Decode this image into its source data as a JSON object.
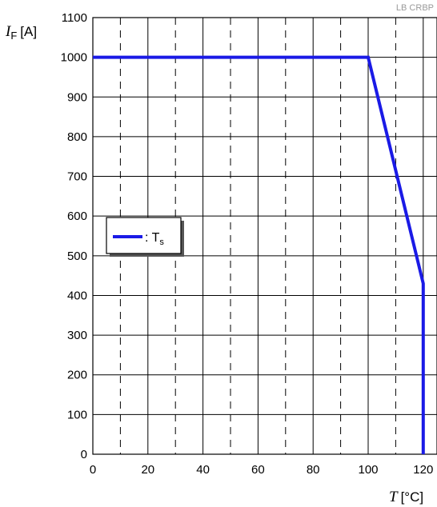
{
  "watermark": "LB CRBP",
  "chart_data": {
    "type": "line",
    "x_label": {
      "var": "T",
      "unit": "[°C]"
    },
    "y_label": {
      "var": "I",
      "sub": "F",
      "unit": "[A]"
    },
    "xlim": [
      0,
      125
    ],
    "ylim": [
      0,
      1100
    ],
    "x_ticks": [
      0,
      20,
      40,
      60,
      80,
      100,
      120
    ],
    "y_ticks": [
      0,
      100,
      200,
      300,
      400,
      500,
      600,
      700,
      800,
      900,
      1000,
      1100
    ],
    "grid": {
      "x_solid": [
        20,
        40,
        60,
        80,
        100,
        120
      ],
      "x_dashed": [
        10,
        30,
        50,
        70,
        90,
        110
      ],
      "y_solid": true
    },
    "legend": {
      "placement": "middle-left",
      "prefix": ": ",
      "label": "T",
      "label_sub": "s"
    },
    "series": [
      {
        "name": "Ts",
        "color": "#1a1ae6",
        "x": [
          0,
          100,
          120,
          120
        ],
        "y": [
          1000,
          1000,
          430,
          0
        ]
      }
    ]
  }
}
